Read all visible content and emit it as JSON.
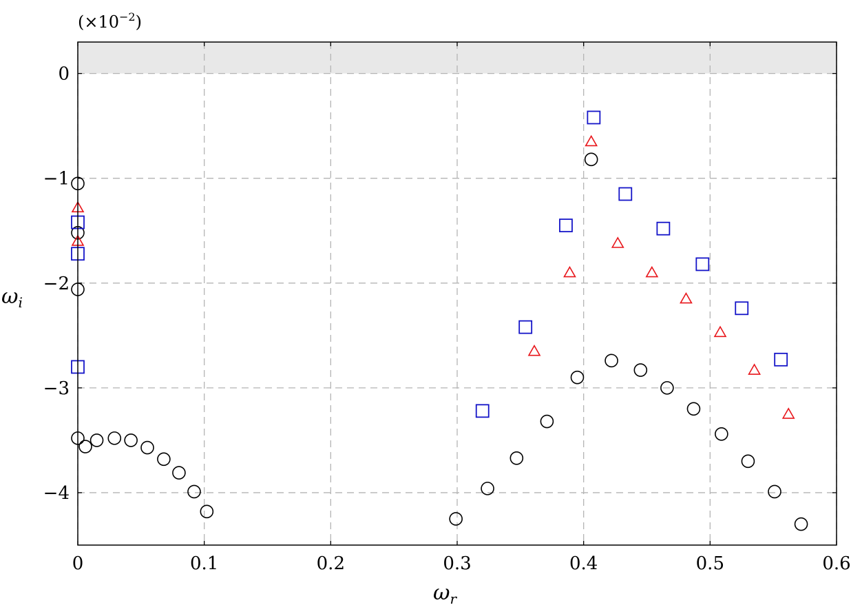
{
  "chart_data": {
    "type": "scatter",
    "title": "",
    "xlabel": "ω",
    "xlabel_sub": "r",
    "ylabel": "ω",
    "ylabel_sub": "i",
    "y_multiplier": "(×10",
    "y_multiplier_exp": "−2",
    "y_multiplier_close": ")",
    "xlim": [
      0,
      0.6
    ],
    "ylim": [
      -4.5,
      0.3
    ],
    "grid": true,
    "unstable_region_shaded": true,
    "shade_color": "#e8e8e8",
    "xticks": [
      0,
      0.1,
      0.2,
      0.3,
      0.4,
      0.5,
      0.6
    ],
    "xtick_labels": [
      "0",
      "0.1",
      "0.2",
      "0.3",
      "0.4",
      "0.5",
      "0.6"
    ],
    "yticks": [
      0,
      -1,
      -2,
      -3,
      -4
    ],
    "ytick_labels": [
      "0",
      "−1",
      "−2",
      "−3",
      "−4"
    ],
    "series": [
      {
        "marker": "circle",
        "color": "#000000",
        "points": [
          [
            0,
            -1.05
          ],
          [
            0,
            -1.52
          ],
          [
            0,
            -2.06
          ],
          [
            0,
            -3.48
          ],
          [
            0.006,
            -3.56
          ],
          [
            0.015,
            -3.5
          ],
          [
            0.029,
            -3.48
          ],
          [
            0.042,
            -3.5
          ],
          [
            0.055,
            -3.57
          ],
          [
            0.068,
            -3.68
          ],
          [
            0.08,
            -3.81
          ],
          [
            0.092,
            -3.99
          ],
          [
            0.102,
            -4.18
          ],
          [
            0.299,
            -4.25
          ],
          [
            0.324,
            -3.96
          ],
          [
            0.347,
            -3.67
          ],
          [
            0.371,
            -3.32
          ],
          [
            0.395,
            -2.9
          ],
          [
            0.422,
            -2.74
          ],
          [
            0.445,
            -2.83
          ],
          [
            0.466,
            -3.0
          ],
          [
            0.487,
            -3.2
          ],
          [
            0.509,
            -3.44
          ],
          [
            0.53,
            -3.7
          ],
          [
            0.551,
            -3.99
          ],
          [
            0.572,
            -4.3
          ],
          [
            0.406,
            -0.82
          ]
        ]
      },
      {
        "marker": "triangle",
        "color": "#e8151a",
        "points": [
          [
            0,
            -1.28
          ],
          [
            0,
            -1.6
          ],
          [
            0.361,
            -2.65
          ],
          [
            0.389,
            -1.9
          ],
          [
            0.406,
            -0.65
          ],
          [
            0.427,
            -1.62
          ],
          [
            0.454,
            -1.9
          ],
          [
            0.481,
            -2.15
          ],
          [
            0.508,
            -2.47
          ],
          [
            0.535,
            -2.83
          ],
          [
            0.562,
            -3.25
          ]
        ]
      },
      {
        "marker": "square",
        "color": "#1414c8",
        "points": [
          [
            0,
            -1.42
          ],
          [
            0,
            -1.72
          ],
          [
            0,
            -2.8
          ],
          [
            0.32,
            -3.22
          ],
          [
            0.354,
            -2.42
          ],
          [
            0.386,
            -1.45
          ],
          [
            0.408,
            -0.42
          ],
          [
            0.433,
            -1.15
          ],
          [
            0.463,
            -1.48
          ],
          [
            0.494,
            -1.82
          ],
          [
            0.525,
            -2.24
          ],
          [
            0.556,
            -2.73
          ]
        ]
      }
    ]
  }
}
